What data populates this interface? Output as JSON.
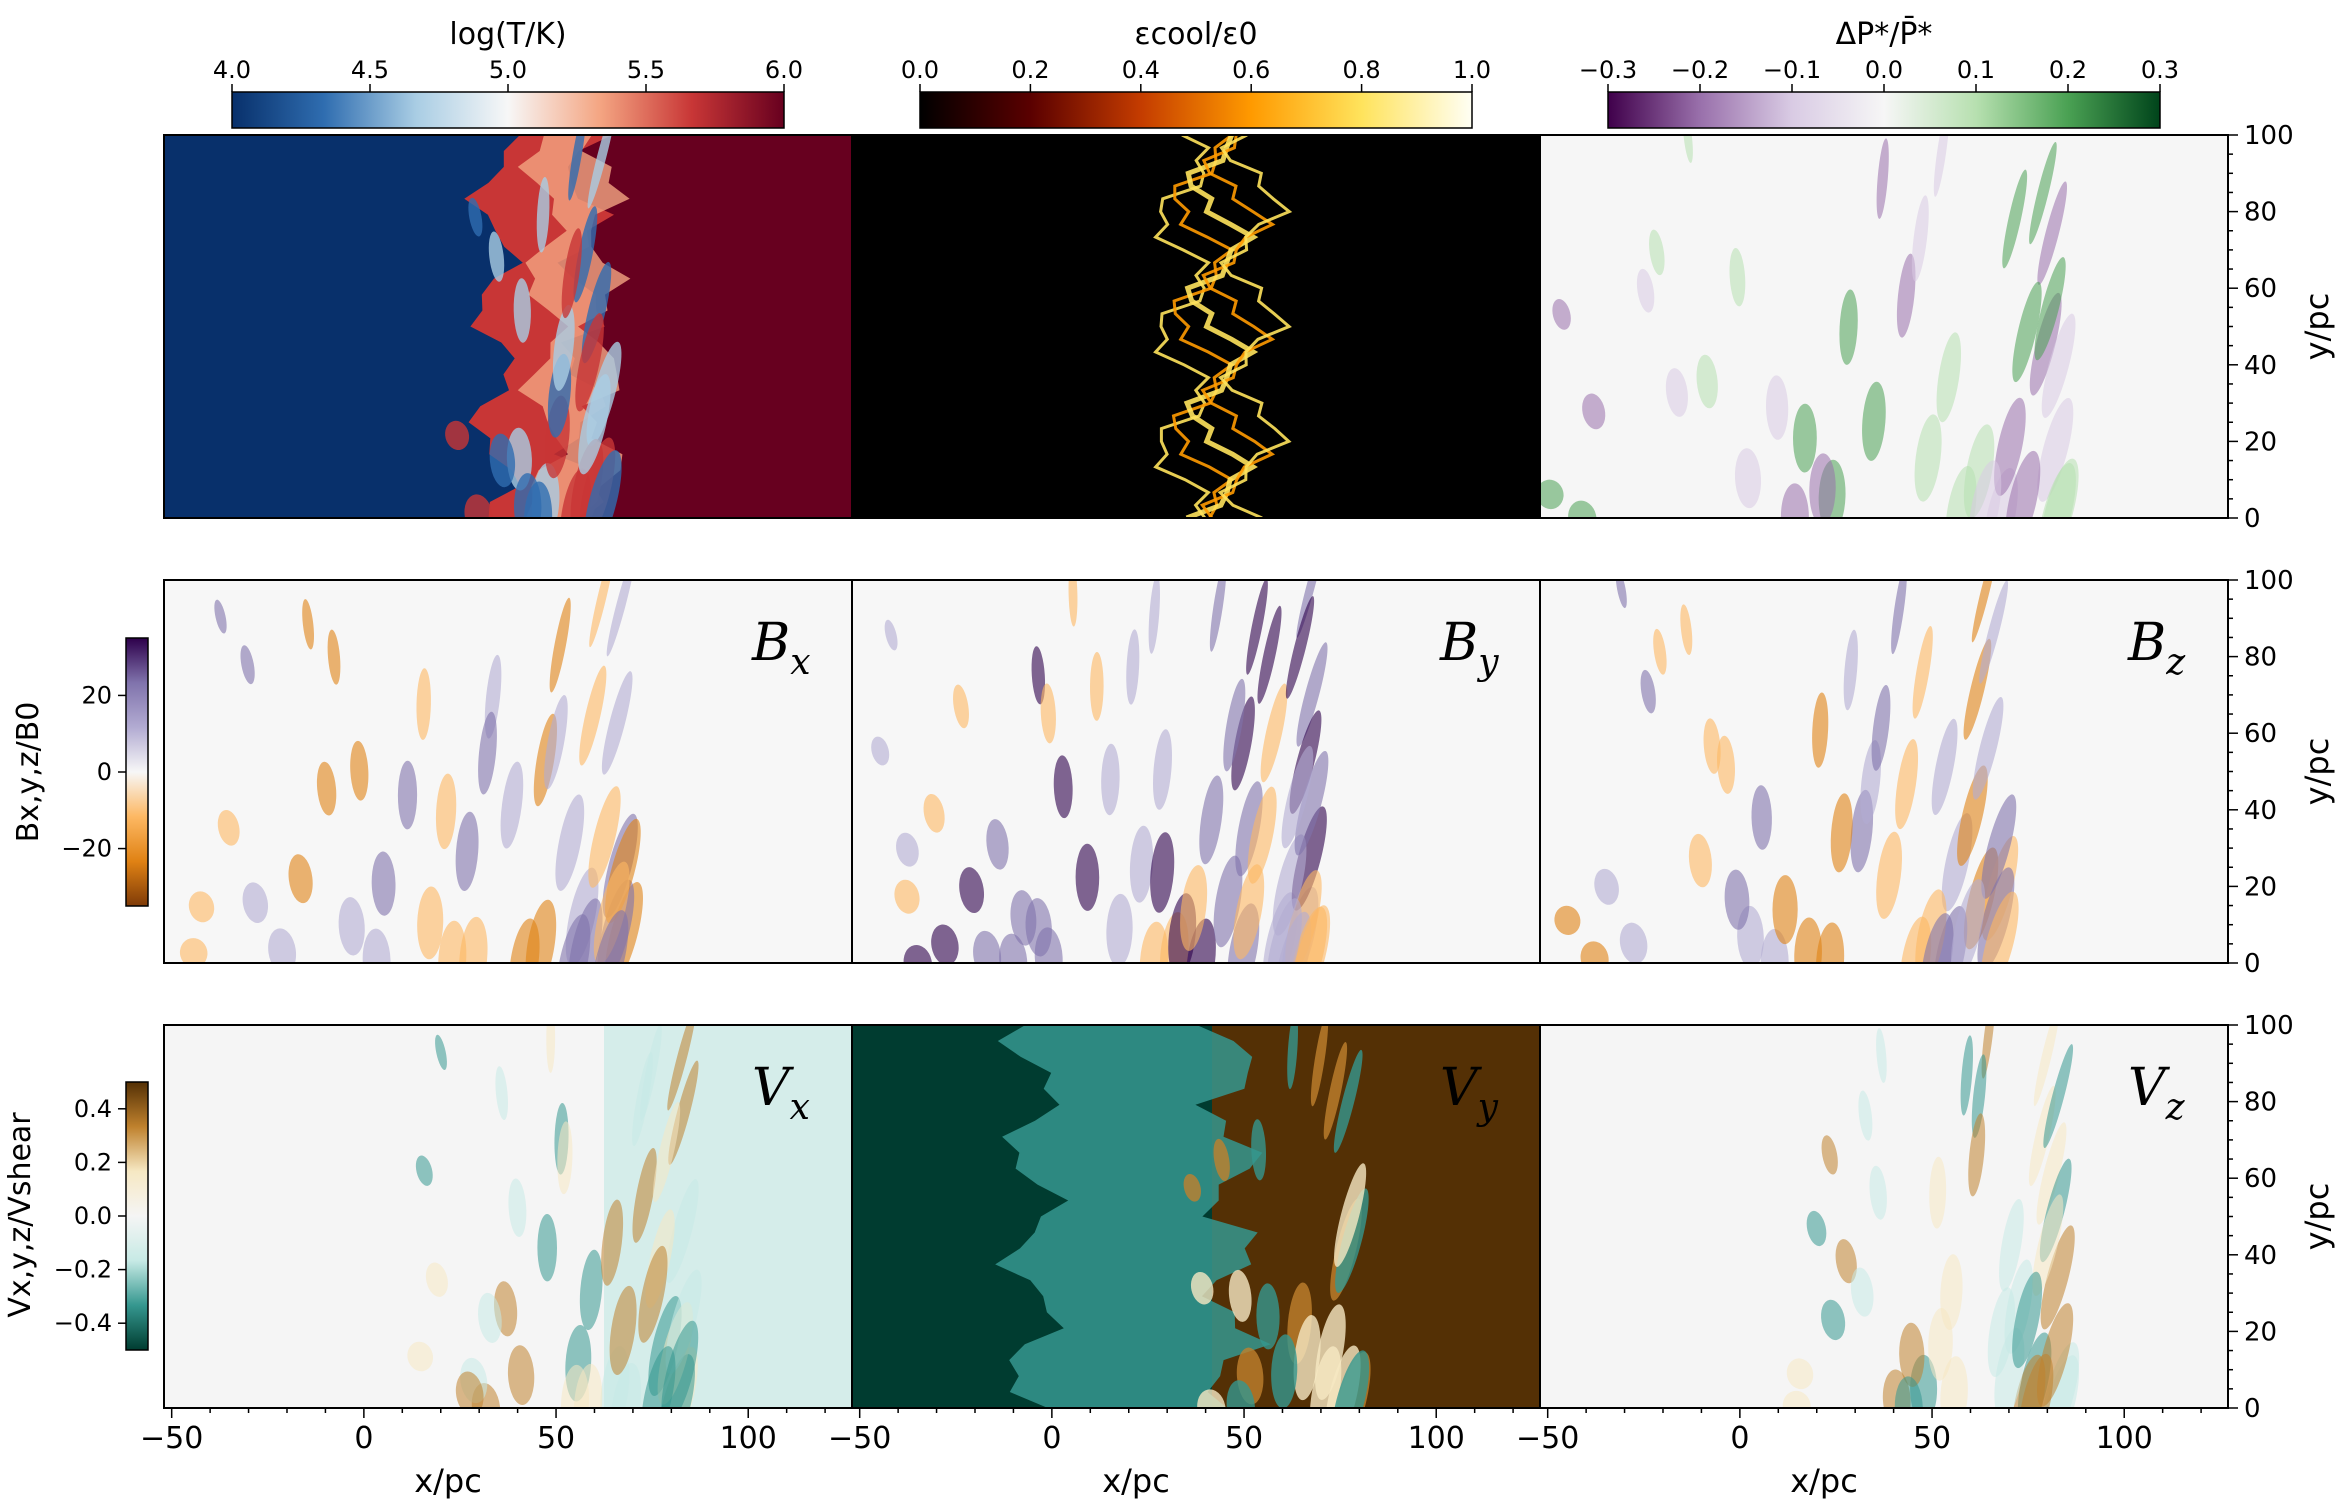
{
  "chart_data": {
    "type": "heatmap",
    "layout": "3x3 panel grid",
    "x_axis": {
      "label": "x/pc",
      "ticks": [
        -50,
        0,
        50,
        100
      ],
      "tick_labels": [
        "−50",
        "0",
        "50",
        "100"
      ]
    },
    "y_axis": {
      "label": "y/pc",
      "ticks": [
        0,
        20,
        40,
        60,
        80,
        100
      ],
      "tick_labels": [
        "0",
        "20",
        "40",
        "60",
        "80",
        "100"
      ]
    },
    "colorbars": {
      "temperature": {
        "label": "log(T/K)",
        "range": [
          4.0,
          6.0
        ],
        "ticks": [
          4.0,
          4.5,
          5.0,
          5.5,
          6.0
        ],
        "tick_labels": [
          "4.0",
          "4.5",
          "5.0",
          "5.5",
          "6.0"
        ],
        "colors": [
          "#08306b",
          "#2f6db0",
          "#a9cde4",
          "#f7f7f7",
          "#f4a582",
          "#c83636",
          "#67001f"
        ]
      },
      "cooling": {
        "label": "εcool/ε0",
        "range": [
          0.0,
          1.0
        ],
        "ticks": [
          0.0,
          0.2,
          0.4,
          0.6,
          0.8,
          1.0
        ],
        "tick_labels": [
          "0.0",
          "0.2",
          "0.4",
          "0.6",
          "0.8",
          "1.0"
        ],
        "colors": [
          "#000000",
          "#5a0000",
          "#c43c00",
          "#ff9a00",
          "#ffe35c",
          "#fffff4"
        ]
      },
      "pressure": {
        "label": "ΔP*/P̄*",
        "range": [
          -0.3,
          0.3
        ],
        "ticks": [
          -0.3,
          -0.2,
          -0.1,
          0.0,
          0.1,
          0.2,
          0.3
        ],
        "tick_labels": [
          "−0.3",
          "−0.2",
          "−0.1",
          "0.0",
          "0.1",
          "0.2",
          "0.3"
        ],
        "colors": [
          "#40004b",
          "#9970ab",
          "#d9cbe4",
          "#f6f6f6",
          "#b7e0b0",
          "#4aa153",
          "#00441b"
        ]
      },
      "magnetic": {
        "label": "Bx,y,z/B0",
        "range": [
          -35,
          35
        ],
        "ticks": [
          -20,
          0,
          20
        ],
        "tick_labels": [
          "−20",
          "0",
          "20"
        ],
        "colors": [
          "#7f3b08",
          "#e08214",
          "#fdb863",
          "#f7f7f7",
          "#b2abd2",
          "#8073ac",
          "#2d004b"
        ]
      },
      "velocity": {
        "label": "Vx,y,z/Vshear",
        "range": [
          -0.5,
          0.5
        ],
        "ticks": [
          -0.4,
          -0.2,
          0.0,
          0.2,
          0.4
        ],
        "tick_labels": [
          "−0.4",
          "−0.2",
          "0.0",
          "0.2",
          "0.4"
        ],
        "colors": [
          "#003c30",
          "#35978f",
          "#c7eae5",
          "#f5f5f5",
          "#f6e8c3",
          "#bf812d",
          "#543005"
        ]
      }
    },
    "panels": [
      {
        "row": 0,
        "col": 0,
        "field": "temperature",
        "label": ""
      },
      {
        "row": 0,
        "col": 1,
        "field": "cooling",
        "label": ""
      },
      {
        "row": 0,
        "col": 2,
        "field": "pressure",
        "label": ""
      },
      {
        "row": 1,
        "col": 0,
        "field": "magnetic",
        "label": "B",
        "sub": "x"
      },
      {
        "row": 1,
        "col": 1,
        "field": "magnetic",
        "label": "B",
        "sub": "y"
      },
      {
        "row": 1,
        "col": 2,
        "field": "magnetic",
        "label": "B",
        "sub": "z"
      },
      {
        "row": 2,
        "col": 0,
        "field": "velocity",
        "label": "V",
        "sub": "x"
      },
      {
        "row": 2,
        "col": 1,
        "field": "velocity",
        "label": "V",
        "sub": "y"
      },
      {
        "row": 2,
        "col": 2,
        "field": "velocity",
        "label": "V",
        "sub": "z"
      }
    ]
  }
}
